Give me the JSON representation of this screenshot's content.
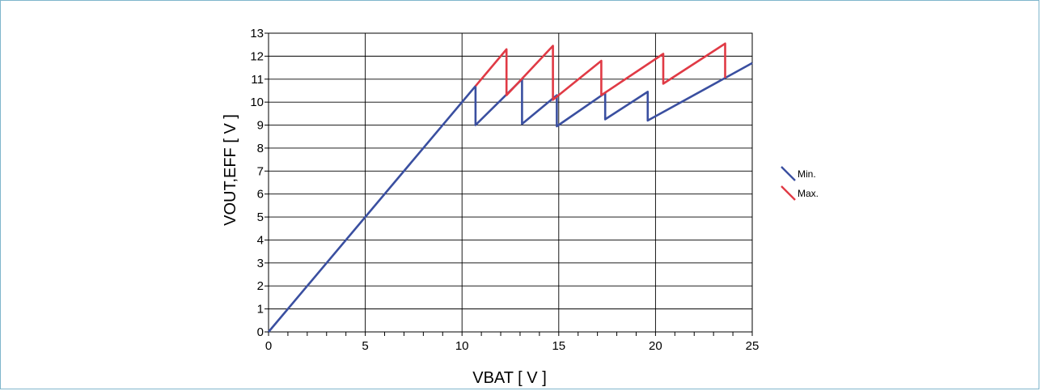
{
  "chart_data": {
    "type": "line",
    "xlabel": "VBAT [ V ]",
    "ylabel": "VOUT,EFF [ V ]",
    "xlim": [
      0,
      25
    ],
    "ylim": [
      0,
      13
    ],
    "xticks": [
      "0",
      "5",
      "10",
      "15",
      "20",
      "25"
    ],
    "yticks": [
      "0",
      "1",
      "2",
      "3",
      "4",
      "5",
      "6",
      "7",
      "8",
      "9",
      "10",
      "11",
      "12",
      "13"
    ],
    "grid": true,
    "legend_position": "right",
    "series": [
      {
        "name": "Min.",
        "color": "#3a4fa0",
        "points": [
          [
            0,
            0
          ],
          [
            10.7,
            10.7
          ],
          [
            10.7,
            9.0
          ],
          [
            13.1,
            11.0
          ],
          [
            13.1,
            9.05
          ],
          [
            14.9,
            10.3
          ],
          [
            14.9,
            8.95
          ],
          [
            17.4,
            10.4
          ],
          [
            17.4,
            9.25
          ],
          [
            19.6,
            10.45
          ],
          [
            19.6,
            9.2
          ],
          [
            25,
            11.7
          ]
        ]
      },
      {
        "name": "Max.",
        "color": "#e03a45",
        "points": [
          [
            10.7,
            10.7
          ],
          [
            12.3,
            12.3
          ],
          [
            12.3,
            10.3
          ],
          [
            14.7,
            12.45
          ],
          [
            14.7,
            10.1
          ],
          [
            17.2,
            11.8
          ],
          [
            17.2,
            10.3
          ],
          [
            20.4,
            12.1
          ],
          [
            20.4,
            10.8
          ],
          [
            23.6,
            12.55
          ],
          [
            23.6,
            11.05
          ]
        ]
      }
    ]
  }
}
